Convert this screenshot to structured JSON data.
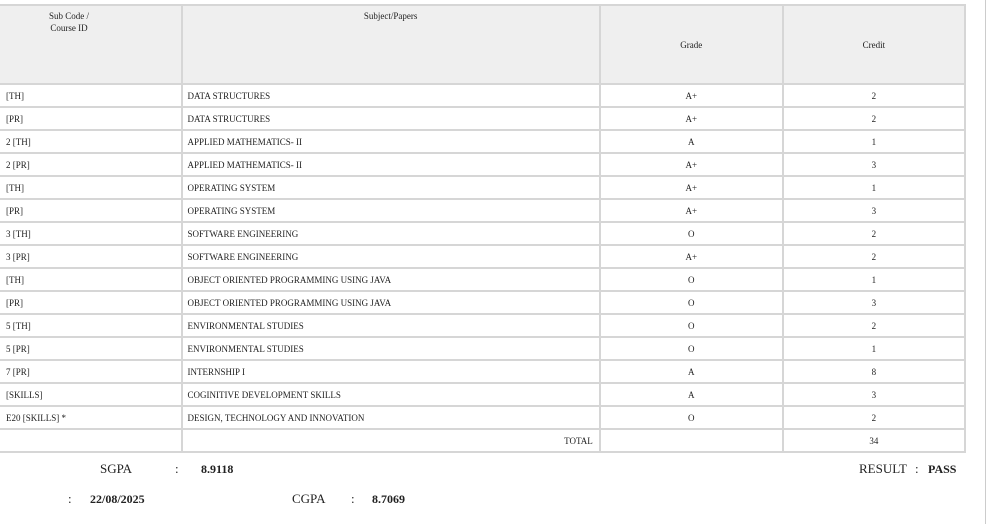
{
  "table": {
    "headers": {
      "code": "Sub Code / Course ID",
      "subject": "Subject/Papers",
      "grade": "Grade",
      "credit": "Credit"
    },
    "rows": [
      {
        "code": "[TH]",
        "subject": "DATA STRUCTURES",
        "grade": "A+",
        "credit": "2"
      },
      {
        "code": "[PR]",
        "subject": "DATA STRUCTURES",
        "grade": "A+",
        "credit": "2"
      },
      {
        "code": "2 [TH]",
        "subject": "APPLIED MATHEMATICS- II",
        "grade": "A",
        "credit": "1"
      },
      {
        "code": "2 [PR]",
        "subject": "APPLIED MATHEMATICS- II",
        "grade": "A+",
        "credit": "3"
      },
      {
        "code": "[TH]",
        "subject": "OPERATING SYSTEM",
        "grade": "A+",
        "credit": "1"
      },
      {
        "code": "[PR]",
        "subject": "OPERATING SYSTEM",
        "grade": "A+",
        "credit": "3"
      },
      {
        "code": "3 [TH]",
        "subject": "SOFTWARE ENGINEERING",
        "grade": "O",
        "credit": "2"
      },
      {
        "code": "3 [PR]",
        "subject": "SOFTWARE ENGINEERING",
        "grade": "A+",
        "credit": "2"
      },
      {
        "code": "[TH]",
        "subject": "OBJECT ORIENTED PROGRAMMING USING JAVA",
        "grade": "O",
        "credit": "1"
      },
      {
        "code": "[PR]",
        "subject": "OBJECT ORIENTED PROGRAMMING USING JAVA",
        "grade": "O",
        "credit": "3"
      },
      {
        "code": "5 [TH]",
        "subject": "ENVIRONMENTAL STUDIES",
        "grade": "O",
        "credit": "2"
      },
      {
        "code": "5 [PR]",
        "subject": "ENVIRONMENTAL STUDIES",
        "grade": "O",
        "credit": "1"
      },
      {
        "code": "7 [PR]",
        "subject": "INTERNSHIP I",
        "grade": "A",
        "credit": "8"
      },
      {
        "code": "[SKILLS]",
        "subject": "COGINITIVE DEVELOPMENT SKILLS",
        "grade": "A",
        "credit": "3"
      },
      {
        "code": "E20 [SKILLS] *",
        "subject": "DESIGN, TECHNOLOGY AND INNOVATION",
        "grade": "O",
        "credit": "2"
      }
    ],
    "total_label": "TOTAL",
    "total_credit": "34"
  },
  "summary": {
    "sgpa_label": "SGPA",
    "sgpa": "8.9118",
    "result_label": "RESULT",
    "result": "PASS",
    "date": "22/08/2025",
    "cgpa_label": "CGPA",
    "cgpa": "8.7069",
    "colon": ":"
  }
}
